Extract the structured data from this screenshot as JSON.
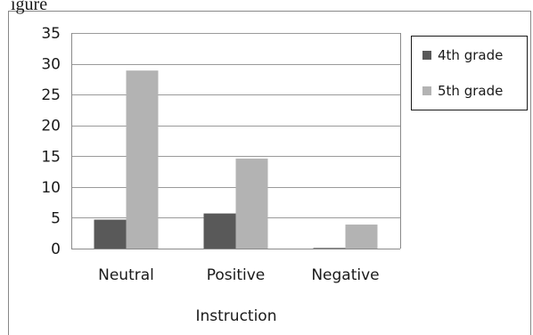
{
  "top_fragment": "igure",
  "chart_data": {
    "type": "bar",
    "title": "",
    "xlabel": "Instruction",
    "ylabel": "",
    "categories": [
      "Neutral",
      "Positive",
      "Negative"
    ],
    "series": [
      {
        "name": "4th grade",
        "values": [
          4.7,
          5.7,
          0.1
        ],
        "color": "#595959"
      },
      {
        "name": "5th grade",
        "values": [
          28.9,
          14.6,
          3.9
        ],
        "color": "#b3b3b3"
      }
    ],
    "ylim": [
      0,
      35
    ],
    "yticks": [
      0,
      5,
      10,
      15,
      20,
      25,
      30,
      35
    ],
    "grid": true,
    "legend_position": "right"
  }
}
